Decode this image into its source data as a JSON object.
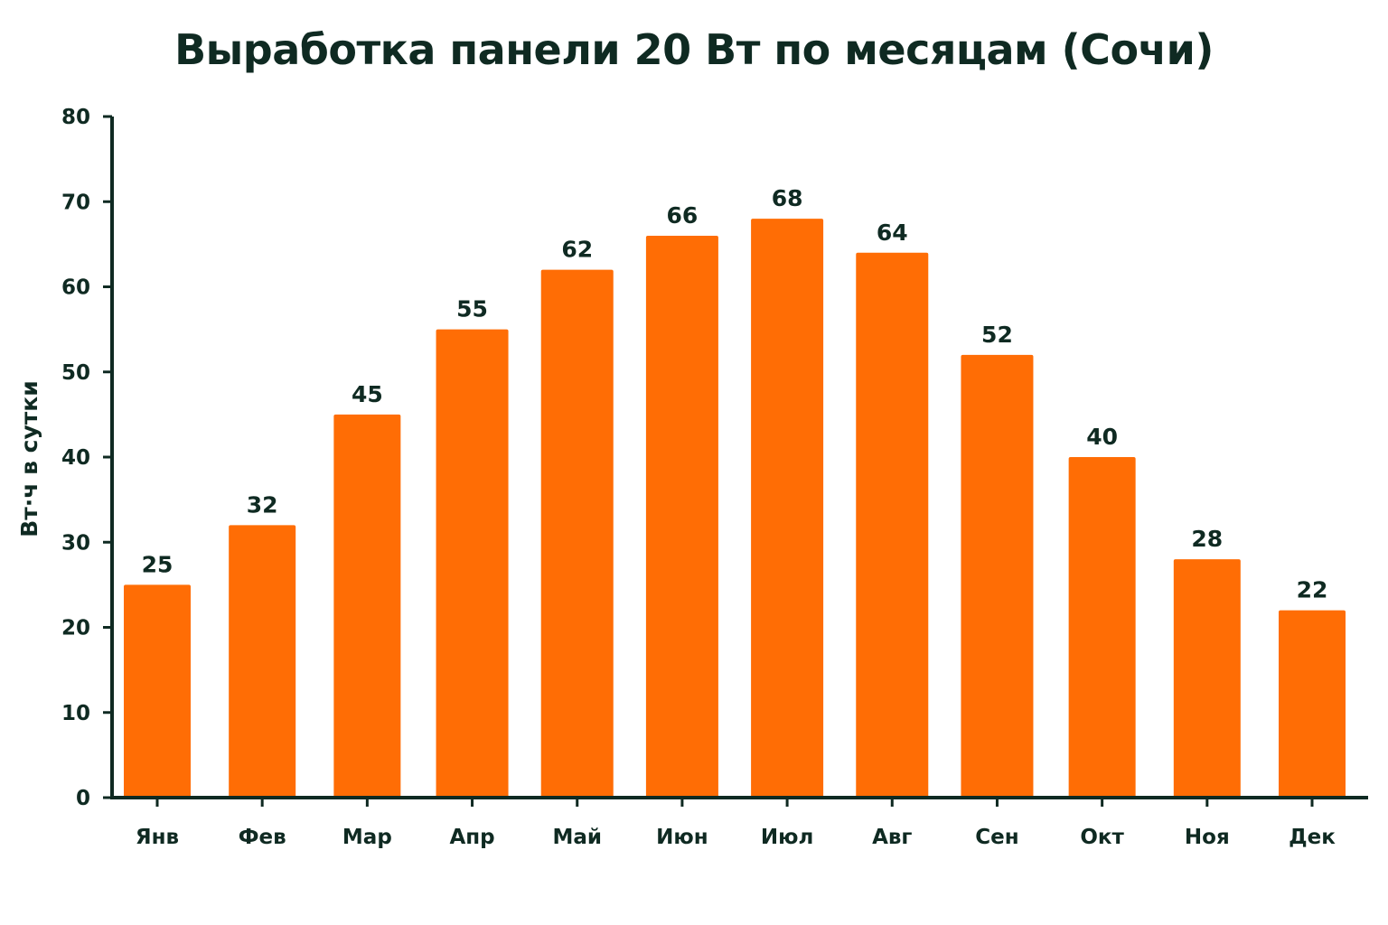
{
  "chart_data": {
    "type": "bar",
    "title": "Выработка панели 20 Вт по месяцам (Сочи)",
    "xlabel": "",
    "ylabel": "Вт·ч в сутки",
    "categories": [
      "Янв",
      "Фев",
      "Мар",
      "Апр",
      "Май",
      "Июн",
      "Июл",
      "Авг",
      "Сен",
      "Окт",
      "Ноя",
      "Дек"
    ],
    "values": [
      25,
      32,
      45,
      55,
      62,
      66,
      68,
      64,
      52,
      40,
      28,
      22
    ],
    "ylim": [
      0,
      80
    ],
    "yticks": [
      "0",
      "10",
      "20",
      "30",
      "40",
      "50",
      "60",
      "70",
      "80"
    ],
    "grid": false,
    "legend": "none",
    "colors": {
      "bar": "#ff6d05",
      "axis": "#0f2a22",
      "text": "#0f2a22"
    }
  }
}
